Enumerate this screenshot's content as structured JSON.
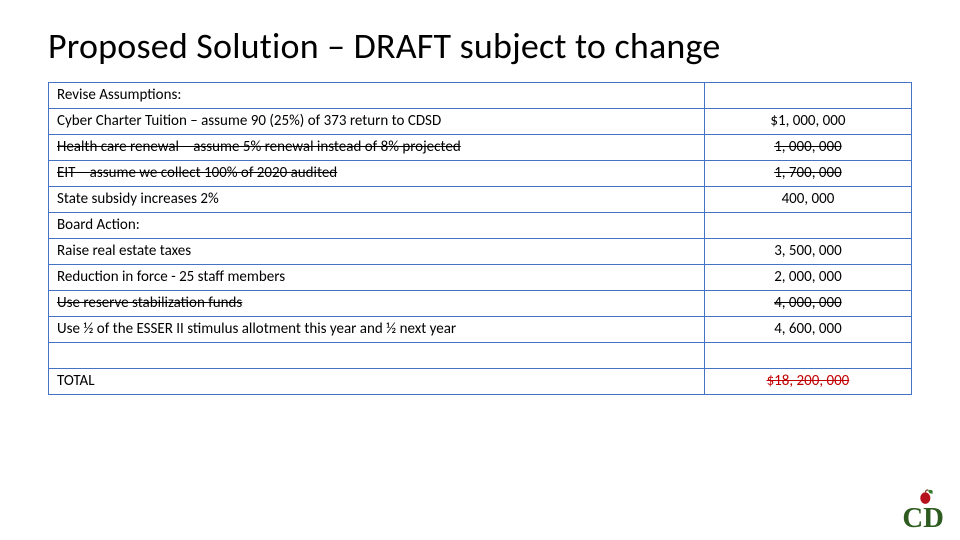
{
  "title": "Proposed Solution – DRAFT subject to change",
  "table": {
    "border_color": "#4472c4",
    "column_widths_pct": [
      76,
      24
    ],
    "cell_font_size": 15,
    "rows": [
      {
        "label": "Revise Assumptions:",
        "amount": "",
        "indent": false,
        "strike": false,
        "amount_strike": false,
        "amount_red": false
      },
      {
        "label": "Cyber Charter Tuition – assume 90 (25%) of 373 return to CDSD",
        "amount": "$1, 000, 000",
        "indent": true,
        "strike": false,
        "amount_strike": false,
        "amount_red": false
      },
      {
        "label": "Health care renewal – assume 5% renewal instead of 8% projected",
        "amount": "1, 000, 000",
        "indent": true,
        "strike": true,
        "amount_strike": true,
        "amount_red": false
      },
      {
        "label": "EIT – assume we collect 100% of 2020 audited",
        "amount": "1, 700, 000",
        "indent": true,
        "strike": true,
        "amount_strike": true,
        "amount_red": false
      },
      {
        "label": "State subsidy increases 2%",
        "amount": "400, 000",
        "indent": true,
        "strike": false,
        "amount_strike": false,
        "amount_red": false
      },
      {
        "label": "Board Action:",
        "amount": "",
        "indent": false,
        "strike": false,
        "amount_strike": false,
        "amount_red": false
      },
      {
        "label": "Raise real estate taxes",
        "amount": "3, 500, 000",
        "indent": true,
        "strike": false,
        "amount_strike": false,
        "amount_red": false
      },
      {
        "label": "Reduction in force - 25 staff members",
        "amount": "2, 000, 000",
        "indent": true,
        "strike": false,
        "amount_strike": false,
        "amount_red": false
      },
      {
        "label": "Use reserve stabilization funds",
        "amount": "4, 000, 000",
        "indent": true,
        "strike": true,
        "amount_strike": true,
        "amount_red": false
      },
      {
        "label": "Use ½ of the ESSER II stimulus allotment this year and ½ next year",
        "amount": "4, 600, 000",
        "indent": true,
        "strike": false,
        "amount_strike": false,
        "amount_red": false
      },
      {
        "label": "",
        "amount": "",
        "indent": false,
        "strike": false,
        "amount_strike": false,
        "amount_red": false
      },
      {
        "label": "TOTAL",
        "amount": "$18, 200, 000",
        "indent": true,
        "strike": false,
        "amount_strike": true,
        "amount_red": true
      }
    ]
  },
  "logo": {
    "letters": "CD",
    "letter_color": "#2e5b1f",
    "apple_color": "#b5121b",
    "leaf_color": "#3a7a2c"
  }
}
